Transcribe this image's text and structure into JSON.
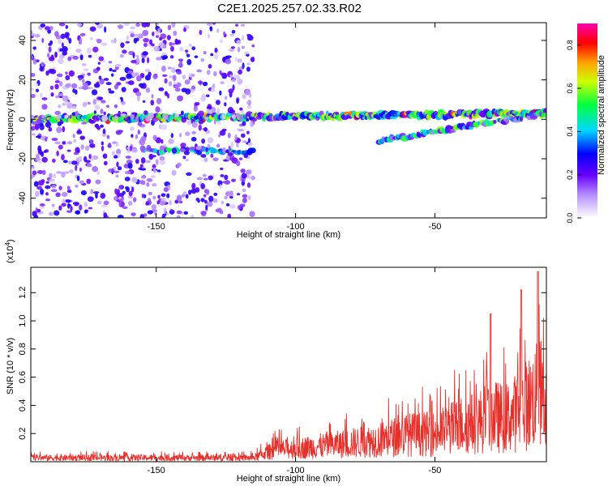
{
  "title": "C2E1.2025.257.02.33.R02",
  "chart_data": [
    {
      "type": "heatmap",
      "title": "C2E1.2025.257.02.33.R02",
      "xlabel": "Height of straight line (km)",
      "ylabel": "Frequency (Hz)",
      "xlim": [
        -195,
        -10
      ],
      "ylim": [
        -50,
        49
      ],
      "xticks": [
        -150,
        -100,
        -50
      ],
      "yticks": [
        -40,
        -20,
        0,
        20,
        40
      ],
      "xtick_labels": [
        "-150",
        "-100",
        "-50"
      ],
      "ytick_labels": [
        "-40",
        "-20",
        "0",
        "20",
        "40"
      ],
      "colorbar": {
        "label": "Normalized spectral amplitude",
        "range": [
          0,
          0.9
        ],
        "ticks": [
          0,
          0.2,
          0.4,
          0.6,
          0.8
        ],
        "tick_labels": [
          "0.0",
          "0.2",
          "0.4",
          "0.6",
          "0.8"
        ]
      },
      "features": [
        {
          "name": "main-band",
          "x_range": [
            -195,
            -10
          ],
          "freq_start": 0,
          "freq_end": 3,
          "peak_amplitude": 0.9
        },
        {
          "name": "lower-band",
          "x_range": [
            -155,
            -115
          ],
          "freq": -16,
          "peak_amplitude": 0.45
        },
        {
          "name": "broadband-noise",
          "x_range": [
            -195,
            -115
          ],
          "freq_range": [
            -50,
            49
          ],
          "peak_amplitude": 0.25
        },
        {
          "name": "rising-band",
          "x_range": [
            -70,
            -10
          ],
          "freq_start": -11,
          "freq_end": 3,
          "peak_amplitude": 0.5
        }
      ]
    },
    {
      "type": "line",
      "xlabel": "Height of straight line (km)",
      "ylabel": "SNR (10 * v/v)",
      "y_multiplier": "(x10",
      "y_multiplier_exp": "4",
      "y_multiplier_close": ")",
      "xlim": [
        -195,
        -10
      ],
      "ylim": [
        0,
        13800
      ],
      "xticks": [
        -150,
        -100,
        -50
      ],
      "xtick_labels": [
        "-150",
        "-100",
        "-50"
      ],
      "yticks": [
        2000,
        4000,
        6000,
        8000,
        10000,
        12000
      ],
      "ytick_labels": [
        "0.2",
        "0.4",
        "0.6",
        "0.8",
        "1.0",
        "1.2"
      ],
      "series": [
        {
          "name": "SNR",
          "color": "#e8302b",
          "envelope_x": [
            -195,
            -115,
            -108,
            -100,
            -80,
            -70,
            -60,
            -50,
            -40,
            -35,
            -30,
            -25,
            -20,
            -15,
            -12,
            -10
          ],
          "envelope_y": [
            500,
            500,
            1500,
            1700,
            2400,
            2800,
            3500,
            3600,
            4800,
            5000,
            6000,
            5500,
            6500,
            8000,
            9000,
            5000
          ],
          "peaks": [
            {
              "x": -30,
              "y": 10500
            },
            {
              "x": -19,
              "y": 12200
            },
            {
              "x": -13,
              "y": 13500
            }
          ]
        }
      ]
    }
  ],
  "colors": {
    "line": "#e8302b",
    "colormap": [
      "#ffffff",
      "#7a00ff",
      "#0000ff",
      "#00ffff",
      "#00ff00",
      "#ffff00",
      "#ff7f00",
      "#ff0000",
      "#ff00aa"
    ]
  }
}
